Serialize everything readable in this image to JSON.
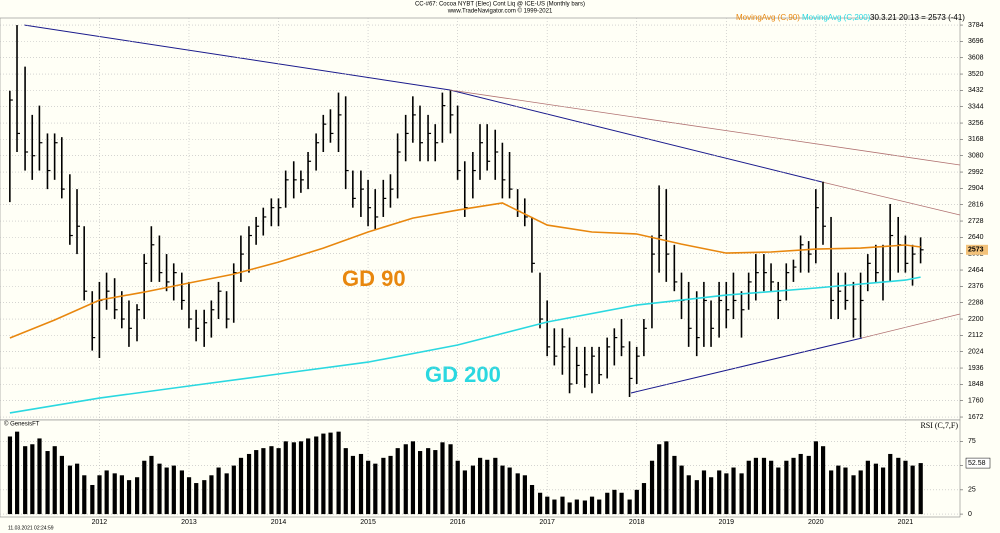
{
  "chart_data": [
    {
      "type": "ohlc",
      "title": "CC-#67: Cocoa NYBT (Elec) Cont Liq @ ICE-US  (Monthly bars)",
      "subtitle": "www.TradeNavigator.com © 1999-2021",
      "status": "30.3.21 20:13 = 2573 (-41)",
      "watermark": "© GenesisFT",
      "color": "#000000",
      "xlim": [
        2010.89,
        2021.61
      ],
      "xticks": [
        2012,
        2013,
        2014,
        2015,
        2016,
        2017,
        2018,
        2019,
        2020,
        2021
      ],
      "ylim": [
        1656,
        3822
      ],
      "yticks": [
        1672,
        1760,
        1848,
        1936,
        2024,
        2112,
        2200,
        2288,
        2376,
        2464,
        2552,
        2640,
        2728,
        2816,
        2904,
        2992,
        3080,
        3168,
        3256,
        3344,
        3432,
        3520,
        3608,
        3696,
        3784
      ],
      "grid": true,
      "x": [
        2011,
        2011.08,
        2011.17,
        2011.25,
        2011.33,
        2011.42,
        2011.5,
        2011.58,
        2011.67,
        2011.75,
        2011.83,
        2011.92,
        2012,
        2012.08,
        2012.17,
        2012.25,
        2012.33,
        2012.42,
        2012.5,
        2012.58,
        2012.67,
        2012.75,
        2012.83,
        2012.92,
        2013,
        2013.08,
        2013.17,
        2013.25,
        2013.33,
        2013.42,
        2013.5,
        2013.58,
        2013.67,
        2013.75,
        2013.83,
        2013.92,
        2014,
        2014.08,
        2014.17,
        2014.25,
        2014.33,
        2014.42,
        2014.5,
        2014.58,
        2014.67,
        2014.75,
        2014.83,
        2014.92,
        2015,
        2015.08,
        2015.17,
        2015.25,
        2015.33,
        2015.42,
        2015.5,
        2015.58,
        2015.67,
        2015.75,
        2015.83,
        2015.92,
        2016,
        2016.08,
        2016.17,
        2016.25,
        2016.33,
        2016.42,
        2016.5,
        2016.58,
        2016.67,
        2016.75,
        2016.83,
        2016.92,
        2017,
        2017.08,
        2017.17,
        2017.25,
        2017.33,
        2017.42,
        2017.5,
        2017.58,
        2017.67,
        2017.75,
        2017.83,
        2017.92,
        2018,
        2018.08,
        2018.17,
        2018.25,
        2018.33,
        2018.42,
        2018.5,
        2018.58,
        2018.67,
        2018.75,
        2018.83,
        2018.92,
        2019,
        2019.08,
        2019.17,
        2019.25,
        2019.33,
        2019.42,
        2019.5,
        2019.58,
        2019.67,
        2019.75,
        2019.83,
        2019.92,
        2020,
        2020.08,
        2020.17,
        2020.25,
        2020.33,
        2020.42,
        2020.5,
        2020.58,
        2020.67,
        2020.75,
        2020.83,
        2020.92,
        2021,
        2021.08,
        2021.17
      ],
      "high": [
        3430,
        3784,
        3560,
        3300,
        3350,
        3200,
        3200,
        3180,
        2980,
        2900,
        2700,
        2350,
        2400,
        2450,
        2420,
        2350,
        2300,
        2280,
        2550,
        2700,
        2650,
        2550,
        2500,
        2450,
        2400,
        2250,
        2250,
        2300,
        2400,
        2350,
        2500,
        2650,
        2700,
        2750,
        2800,
        2850,
        2850,
        3000,
        3050,
        3000,
        3100,
        3200,
        3300,
        3330,
        3420,
        3400,
        3000,
        3000,
        2950,
        2900,
        2950,
        2980,
        3200,
        3300,
        3400,
        3350,
        3300,
        3250,
        3420,
        3432,
        3350,
        3050,
        3100,
        3250,
        3250,
        3220,
        3150,
        3100,
        2900,
        2850,
        2750,
        2450,
        2300,
        2150,
        2150,
        2100,
        2050,
        2050,
        2050,
        2050,
        2100,
        2150,
        2200,
        2080,
        2050,
        2200,
        2650,
        2920,
        2900,
        2600,
        2450,
        2400,
        2350,
        2400,
        2300,
        2400,
        2400,
        2450,
        2350,
        2450,
        2550,
        2550,
        2500,
        2400,
        2500,
        2520,
        2650,
        2620,
        2900,
        2940,
        2750,
        2450,
        2450,
        2400,
        2450,
        2550,
        2600,
        2600,
        2820,
        2750,
        2650,
        2600,
        2640
      ],
      "low": [
        2830,
        3100,
        3000,
        2950,
        3000,
        2900,
        2950,
        2850,
        2600,
        2550,
        2300,
        2030,
        1990,
        2250,
        2200,
        2150,
        2050,
        2080,
        2200,
        2400,
        2400,
        2350,
        2300,
        2250,
        2150,
        2080,
        2050,
        2100,
        2200,
        2150,
        2180,
        2400,
        2450,
        2600,
        2650,
        2700,
        2700,
        2800,
        2850,
        2880,
        2900,
        3000,
        3100,
        3150,
        3100,
        2900,
        2800,
        2750,
        2700,
        2680,
        2750,
        2800,
        2850,
        3050,
        3150,
        3050,
        3050,
        3050,
        3150,
        3200,
        2950,
        2750,
        2850,
        2950,
        3000,
        2950,
        2850,
        2850,
        2750,
        2700,
        2450,
        2150,
        2000,
        1950,
        1900,
        1800,
        1850,
        1830,
        1800,
        1850,
        1880,
        1950,
        2000,
        1780,
        1850,
        2000,
        2150,
        2450,
        2400,
        2350,
        2200,
        2050,
        2000,
        2050,
        2050,
        2100,
        2150,
        2200,
        2100,
        2250,
        2300,
        2350,
        2350,
        2200,
        2300,
        2400,
        2450,
        2450,
        2500,
        2600,
        2200,
        2200,
        2250,
        2100,
        2100,
        2350,
        2400,
        2300,
        2400,
        2450,
        2450,
        2380,
        2500
      ],
      "close": [
        3380,
        3200,
        3100,
        3080,
        3150,
        3000,
        3150,
        2900,
        2650,
        2700,
        2350,
        2100,
        2300,
        2350,
        2250,
        2200,
        2150,
        2250,
        2500,
        2600,
        2450,
        2400,
        2450,
        2300,
        2200,
        2150,
        2180,
        2250,
        2350,
        2200,
        2450,
        2550,
        2650,
        2700,
        2750,
        2800,
        2800,
        2950,
        2950,
        2950,
        3050,
        3150,
        3250,
        3200,
        3300,
        3000,
        2850,
        2900,
        2800,
        2750,
        2850,
        2900,
        3100,
        3200,
        3300,
        3150,
        3200,
        3150,
        3350,
        3300,
        3000,
        2800,
        3000,
        3150,
        3050,
        3100,
        2950,
        2900,
        2780,
        2750,
        2500,
        2200,
        2050,
        2000,
        2050,
        1850,
        1950,
        1900,
        2000,
        1900,
        2050,
        2100,
        2050,
        1880,
        2000,
        2150,
        2550,
        2650,
        2550,
        2400,
        2300,
        2150,
        2100,
        2300,
        2150,
        2300,
        2250,
        2300,
        2250,
        2400,
        2450,
        2450,
        2400,
        2300,
        2450,
        2480,
        2600,
        2550,
        2800,
        2700,
        2300,
        2350,
        2300,
        2200,
        2300,
        2500,
        2450,
        2400,
        2650,
        2600,
        2500,
        2550,
        2573
      ],
      "lines": [
        {
          "name": "MovingAvg (C,90)",
          "color": "#e8870e",
          "x": [
            2011,
            2011.5,
            2012,
            2012.5,
            2013,
            2013.5,
            2014,
            2014.5,
            2015,
            2015.5,
            2016,
            2016.5,
            2017,
            2017.5,
            2018,
            2018.5,
            2019,
            2019.5,
            2020,
            2020.5,
            2021,
            2021.17
          ],
          "values": [
            2098,
            2195,
            2302,
            2345,
            2394,
            2442,
            2507,
            2582,
            2669,
            2744,
            2787,
            2825,
            2706,
            2669,
            2658,
            2604,
            2555,
            2561,
            2577,
            2582,
            2599,
            2588
          ]
        },
        {
          "name": "MovingAvg (C,200)",
          "color": "#2ad8e0",
          "x": [
            2011,
            2012,
            2013,
            2014,
            2015,
            2016,
            2017,
            2018,
            2019,
            2020,
            2021,
            2021.17
          ],
          "values": [
            1694,
            1774,
            1839,
            1904,
            1968,
            2060,
            2184,
            2275,
            2329,
            2367,
            2410,
            2426
          ]
        }
      ],
      "annotations": [
        "GD 90",
        "GD 200"
      ]
    },
    {
      "type": "bar",
      "title": "RSI (C,7,F)",
      "footer": "11.03.2021 02:24:59",
      "color": "#000000",
      "xlim": [
        2010.89,
        2021.61
      ],
      "xticks": [
        2012,
        2013,
        2014,
        2015,
        2016,
        2017,
        2018,
        2019,
        2020,
        2021
      ],
      "ylim": [
        -3,
        97
      ],
      "yticks": [
        0,
        25,
        50,
        75
      ],
      "grid": true,
      "x": [
        2011,
        2011.08,
        2011.17,
        2011.25,
        2011.33,
        2011.42,
        2011.5,
        2011.58,
        2011.67,
        2011.75,
        2011.83,
        2011.92,
        2012,
        2012.08,
        2012.17,
        2012.25,
        2012.33,
        2012.42,
        2012.5,
        2012.58,
        2012.67,
        2012.75,
        2012.83,
        2012.92,
        2013,
        2013.08,
        2013.17,
        2013.25,
        2013.33,
        2013.42,
        2013.5,
        2013.58,
        2013.67,
        2013.75,
        2013.83,
        2013.92,
        2014,
        2014.08,
        2014.17,
        2014.25,
        2014.33,
        2014.42,
        2014.5,
        2014.58,
        2014.67,
        2014.75,
        2014.83,
        2014.92,
        2015,
        2015.08,
        2015.17,
        2015.25,
        2015.33,
        2015.42,
        2015.5,
        2015.58,
        2015.67,
        2015.75,
        2015.83,
        2015.92,
        2016,
        2016.08,
        2016.17,
        2016.25,
        2016.33,
        2016.42,
        2016.5,
        2016.58,
        2016.67,
        2016.75,
        2016.83,
        2016.92,
        2017,
        2017.08,
        2017.17,
        2017.25,
        2017.33,
        2017.42,
        2017.5,
        2017.58,
        2017.67,
        2017.75,
        2017.83,
        2017.92,
        2018,
        2018.08,
        2018.17,
        2018.25,
        2018.33,
        2018.42,
        2018.5,
        2018.58,
        2018.67,
        2018.75,
        2018.83,
        2018.92,
        2019,
        2019.08,
        2019.17,
        2019.25,
        2019.33,
        2019.42,
        2019.5,
        2019.58,
        2019.67,
        2019.75,
        2019.83,
        2019.92,
        2020,
        2020.08,
        2020.17,
        2020.25,
        2020.33,
        2020.42,
        2020.5,
        2020.58,
        2020.67,
        2020.75,
        2020.83,
        2020.92,
        2021,
        2021.08,
        2021.17
      ],
      "values": [
        80,
        85,
        70,
        72,
        78,
        65,
        70,
        60,
        50,
        52,
        40,
        30,
        40,
        45,
        42,
        40,
        35,
        38,
        55,
        60,
        52,
        48,
        50,
        45,
        38,
        32,
        35,
        40,
        48,
        42,
        50,
        58,
        62,
        66,
        68,
        70,
        68,
        75,
        74,
        75,
        78,
        80,
        83,
        84,
        85,
        68,
        60,
        62,
        55,
        52,
        58,
        60,
        68,
        72,
        75,
        65,
        68,
        66,
        74,
        72,
        55,
        45,
        50,
        58,
        56,
        58,
        50,
        48,
        42,
        40,
        30,
        22,
        18,
        15,
        18,
        12,
        15,
        14,
        18,
        15,
        22,
        25,
        22,
        15,
        25,
        32,
        55,
        72,
        75,
        60,
        50,
        40,
        35,
        45,
        38,
        45,
        42,
        48,
        42,
        55,
        58,
        58,
        55,
        48,
        55,
        58,
        62,
        60,
        75,
        70,
        45,
        50,
        48,
        40,
        45,
        55,
        52,
        48,
        62,
        58,
        55,
        50,
        52.58
      ]
    }
  ]
}
